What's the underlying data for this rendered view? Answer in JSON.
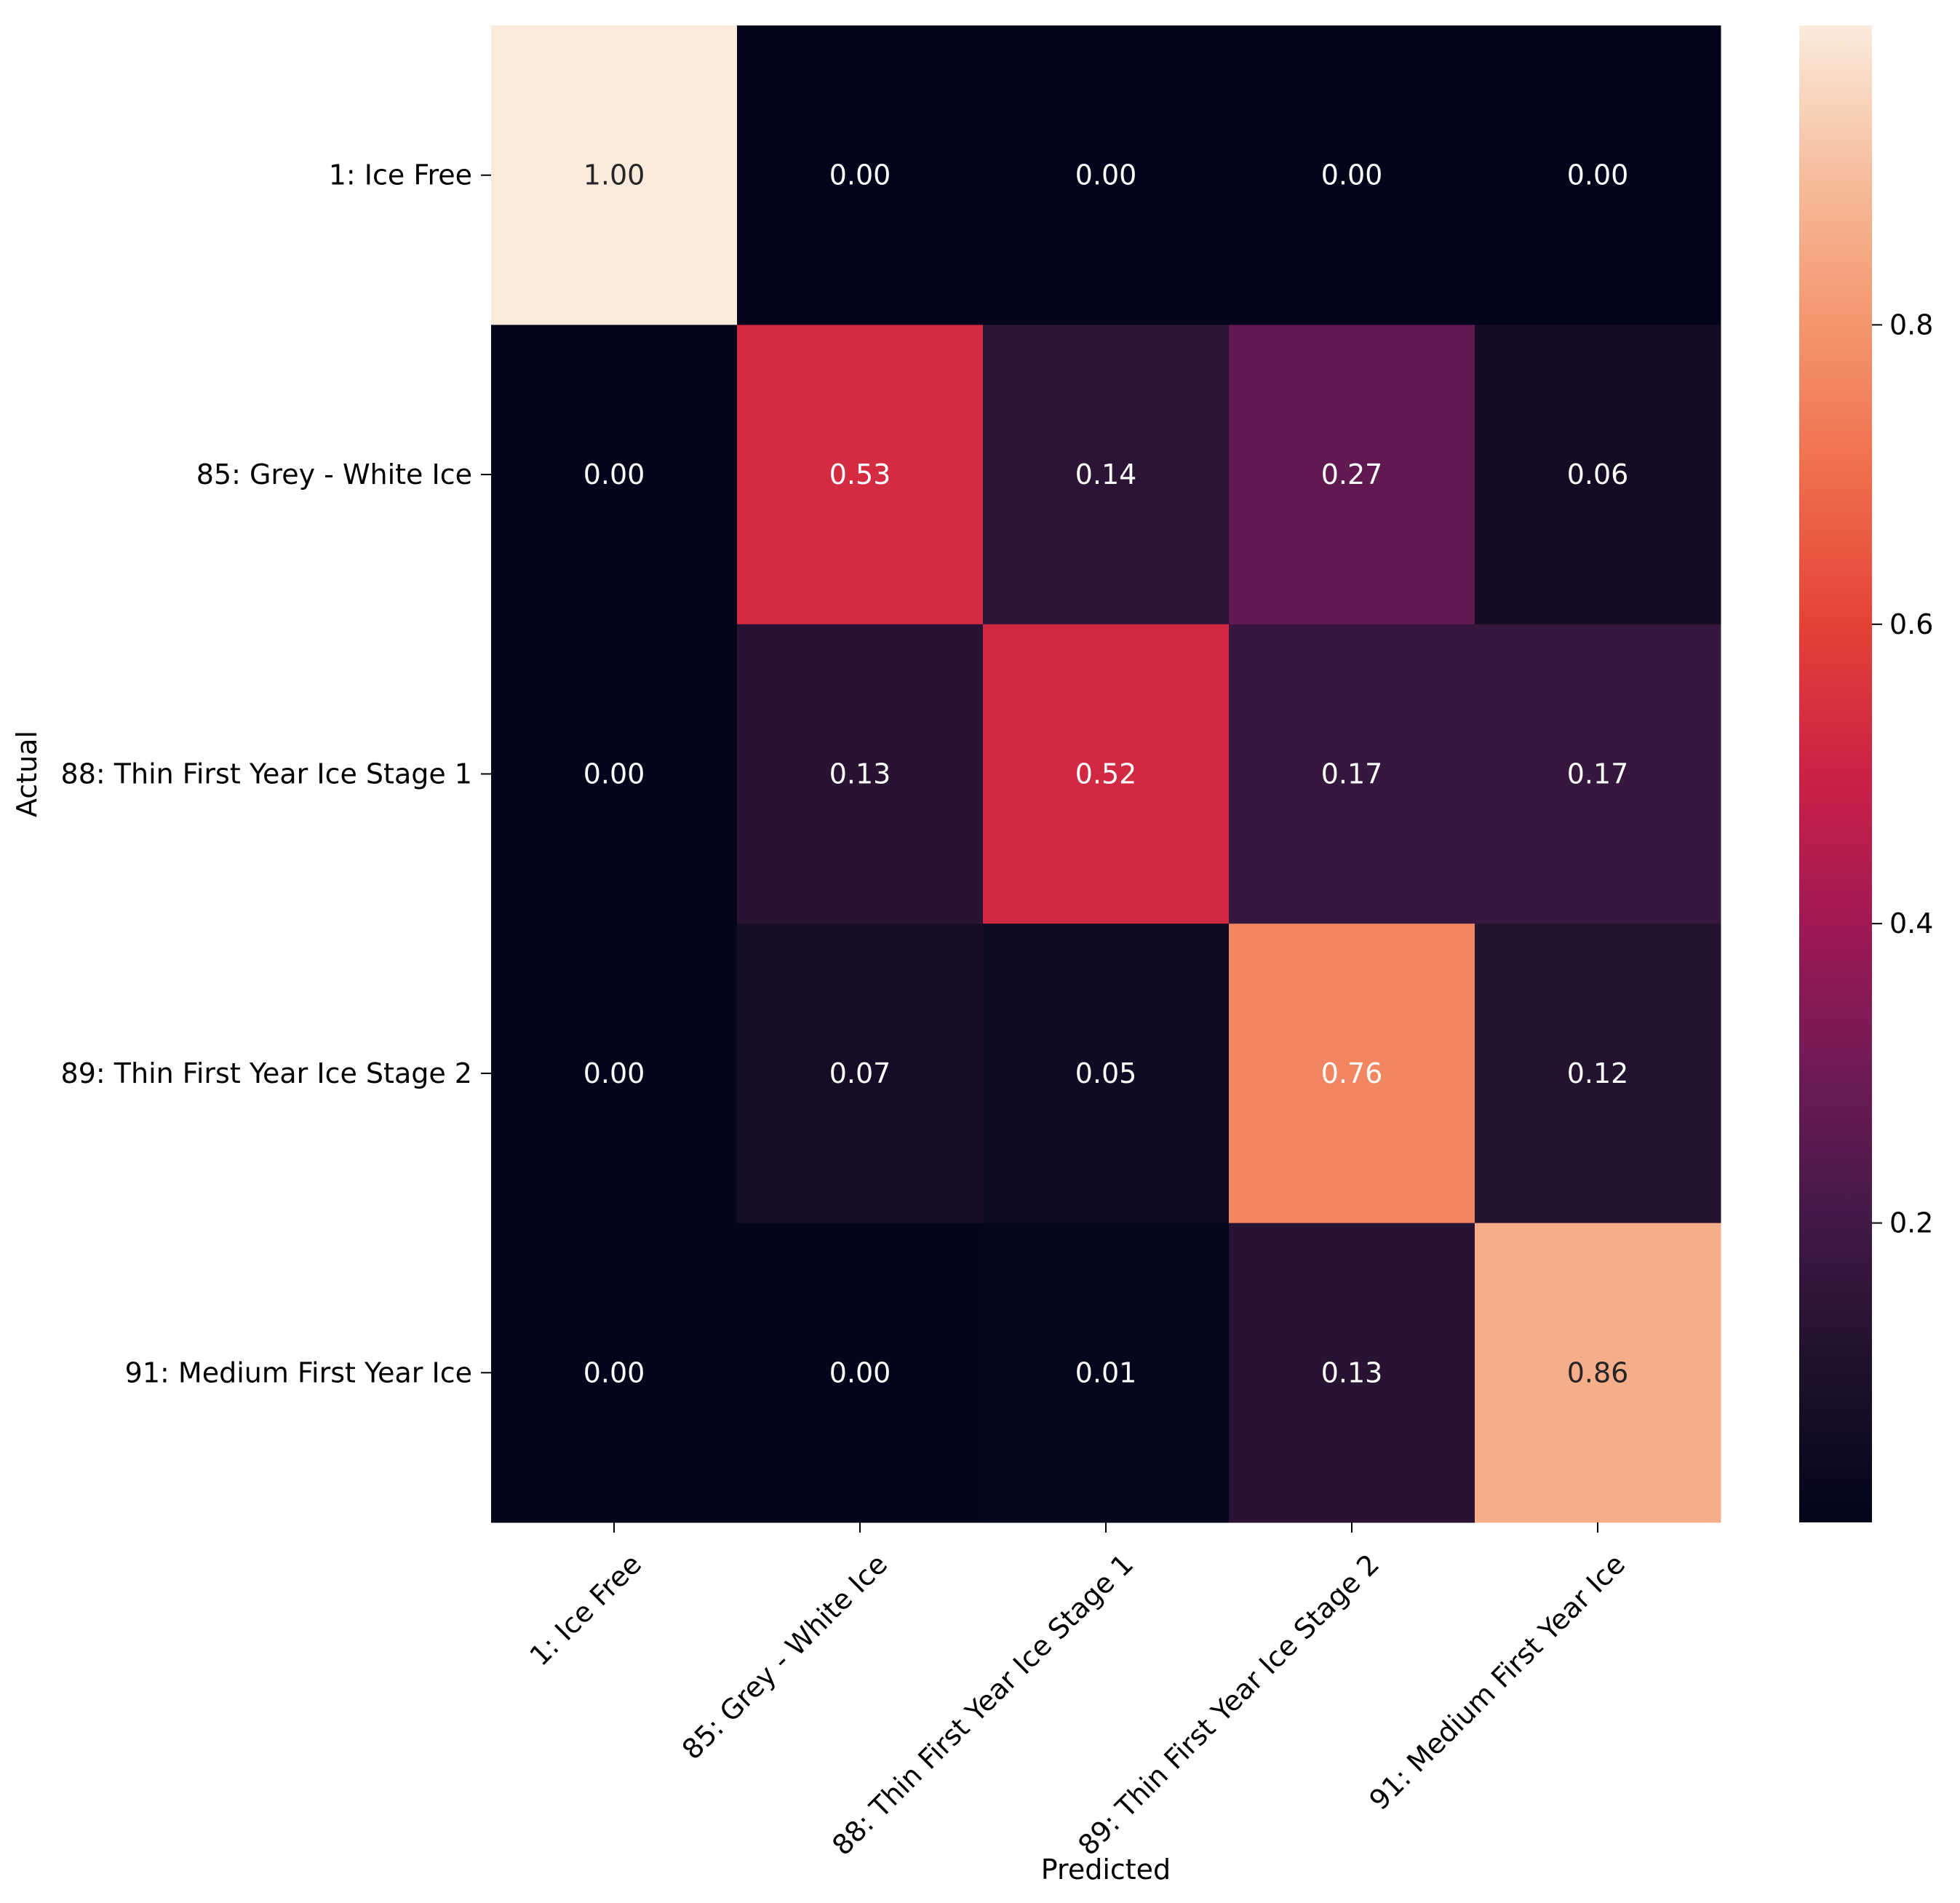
{
  "chart_data": {
    "type": "heatmap",
    "title": "",
    "xlabel": "Predicted",
    "ylabel": "Actual",
    "x_categories": [
      "1: Ice Free",
      "85: Grey - White Ice",
      "88: Thin First Year Ice Stage 1",
      "89: Thin First Year Ice Stage 2",
      "91: Medium First Year Ice"
    ],
    "y_categories": [
      "1: Ice Free",
      "85: Grey - White Ice",
      "88: Thin First Year Ice Stage 1",
      "89: Thin First Year Ice Stage 2",
      "91: Medium First Year Ice"
    ],
    "values": [
      [
        1.0,
        0.0,
        0.0,
        0.0,
        0.0
      ],
      [
        0.0,
        0.53,
        0.14,
        0.27,
        0.06
      ],
      [
        0.0,
        0.13,
        0.52,
        0.17,
        0.17
      ],
      [
        0.0,
        0.07,
        0.05,
        0.76,
        0.12
      ],
      [
        0.0,
        0.0,
        0.01,
        0.13,
        0.86
      ]
    ],
    "value_format": "0.00",
    "colormap": "rocket",
    "colorbar": {
      "range": [
        0.0,
        1.0
      ],
      "ticks": [
        0.2,
        0.4,
        0.6,
        0.8
      ],
      "tick_labels": [
        "0.2",
        "0.4",
        "0.6",
        "0.8"
      ]
    },
    "grid": false,
    "legend": "colorbar-right"
  }
}
